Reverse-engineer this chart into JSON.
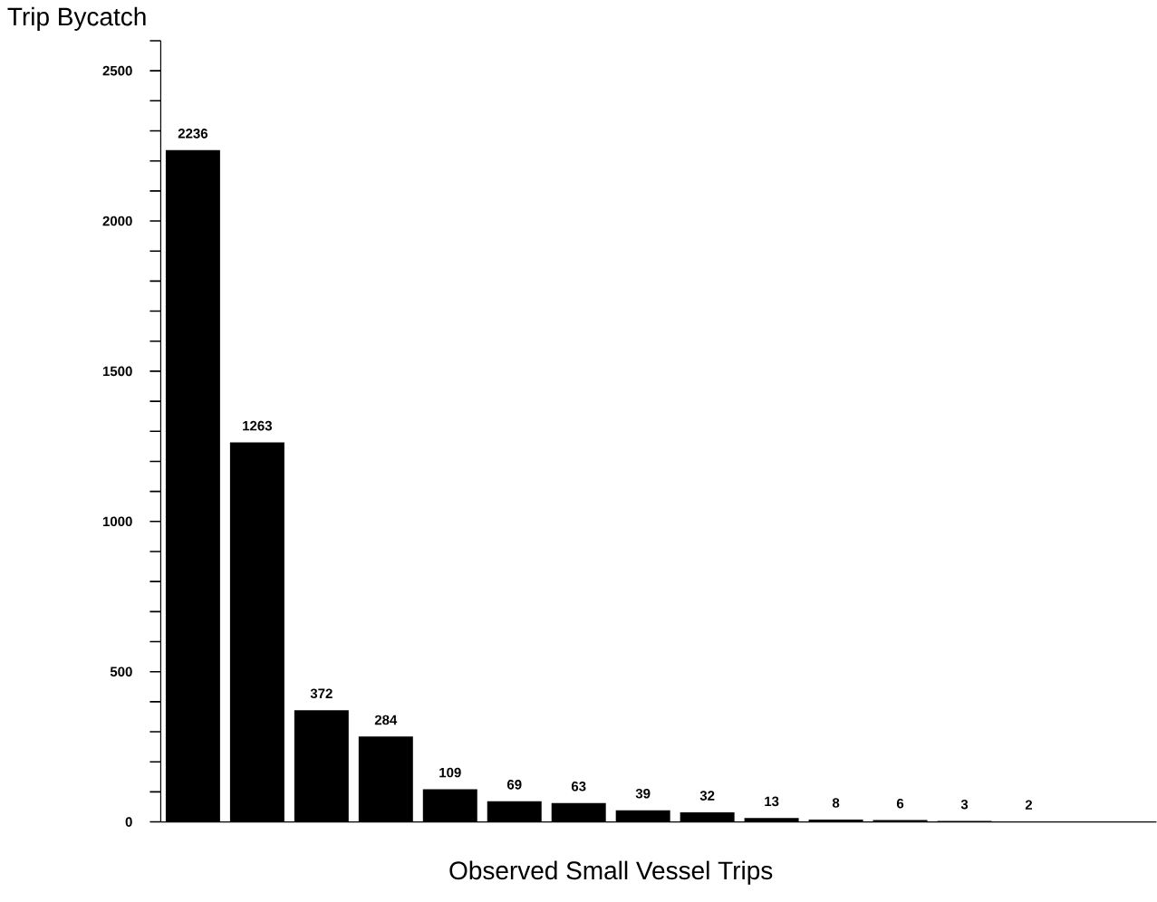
{
  "chart_data": {
    "type": "bar",
    "xlabel": "Observed Small Vessel Trips",
    "ylabel": "Trip Bycatch",
    "categories": [
      null,
      null,
      null,
      null,
      null,
      null,
      null,
      null,
      null,
      null,
      null,
      null,
      null,
      null
    ],
    "values": [
      2236,
      1263,
      372,
      284,
      109,
      69,
      63,
      39,
      32,
      13,
      8,
      6,
      3,
      2
    ],
    "color": "#000000",
    "data_labels": true,
    "grid": false,
    "ylim": [
      0,
      2600
    ],
    "yticks": [
      0,
      {
        "value": 100,
        "label": null
      },
      {
        "value": 200,
        "label": null
      },
      {
        "value": 300,
        "label": null
      },
      {
        "value": 400,
        "label": null
      },
      500,
      {
        "value": 600,
        "label": null
      },
      {
        "value": 700,
        "label": null
      },
      {
        "value": 800,
        "label": null
      },
      {
        "value": 900,
        "label": null
      },
      1000,
      {
        "value": 1100,
        "label": null
      },
      {
        "value": 1200,
        "label": null
      },
      {
        "value": 1300,
        "label": null
      },
      {
        "value": 1400,
        "label": null
      },
      1500,
      {
        "value": 1600,
        "label": null
      },
      {
        "value": 1700,
        "label": null
      },
      {
        "value": 1800,
        "label": null
      },
      {
        "value": 1900,
        "label": null
      },
      2000,
      {
        "value": 2100,
        "label": null
      },
      {
        "value": 2200,
        "label": null
      },
      {
        "value": 2300,
        "label": null
      },
      {
        "value": 2400,
        "label": null
      },
      2500,
      {
        "value": 2600,
        "label": null
      }
    ]
  }
}
